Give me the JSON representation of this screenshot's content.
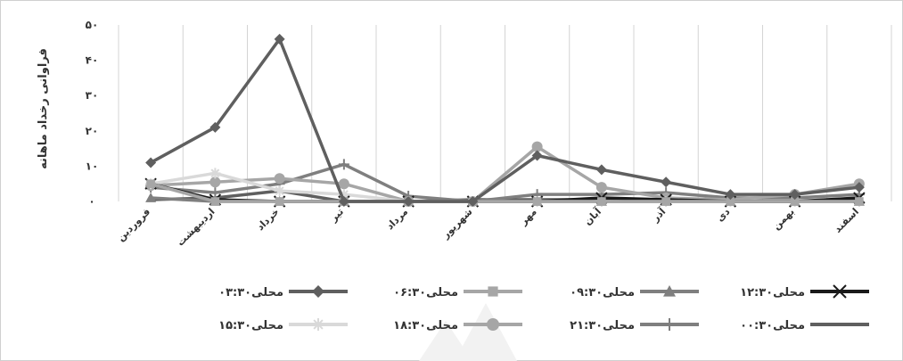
{
  "chart_data": {
    "type": "line",
    "ylabel": "فراوانی رخداد ماهانه",
    "ylim": [
      0,
      50
    ],
    "yticks": [
      0,
      10,
      20,
      30,
      40,
      50
    ],
    "ytick_labels": [
      "۰",
      "۱۰",
      "۲۰",
      "۳۰",
      "۴۰",
      "۵۰"
    ],
    "grid": "vertical",
    "legend_position": "bottom",
    "categories": [
      "فروردین",
      "اردیبهشت",
      "خرداد",
      "تیر",
      "مرداد",
      "شهریور",
      "مهر",
      "آبان",
      "آذر",
      "دی",
      "بهمن",
      "اسفند"
    ],
    "series": [
      {
        "name": "۰۳:۳۰محلی",
        "color": "#5f5f5f",
        "marker": "diamond",
        "values": [
          11,
          21,
          46,
          0,
          0,
          0,
          13,
          9,
          5.5,
          2,
          2,
          4
        ]
      },
      {
        "name": "۰۶:۳۰محلی",
        "color": "#a6a6a6",
        "marker": "square",
        "values": [
          5,
          0,
          0,
          0,
          0,
          0,
          0,
          0,
          0,
          0,
          0,
          0
        ]
      },
      {
        "name": "۰۹:۳۰محلی",
        "color": "#7f7f7f",
        "marker": "triangle",
        "values": [
          1,
          0,
          0,
          0,
          0,
          0,
          0,
          0,
          0,
          0,
          0,
          0
        ]
      },
      {
        "name": "۱۲:۳۰محلی",
        "color": "#1a1a1a",
        "marker": "x",
        "values": [
          5,
          0.5,
          0,
          0,
          0,
          0,
          0,
          1,
          0.5,
          0,
          0,
          1
        ]
      },
      {
        "name": "۱۵:۳۰محلی",
        "color": "#d9d9d9",
        "marker": "star",
        "values": [
          5,
          8,
          3,
          2,
          0,
          0,
          0,
          0,
          0,
          0,
          0,
          0
        ]
      },
      {
        "name": "۱۸:۳۰محلی",
        "color": "#a6a6a6",
        "marker": "circle",
        "values": [
          4.5,
          5.5,
          6.5,
          5,
          0,
          0,
          15.5,
          4,
          1,
          0.5,
          2,
          5
        ]
      },
      {
        "name": "۲۱:۳۰محلی",
        "color": "#7f7f7f",
        "marker": "plus",
        "values": [
          4,
          2.5,
          5,
          10.5,
          1.5,
          0,
          2,
          2,
          2.5,
          1,
          1,
          2
        ]
      },
      {
        "name": "۰۰:۳۰محلی",
        "color": "#5f5f5f",
        "marker": "none",
        "values": [
          0.5,
          1,
          3,
          0,
          0,
          0.5,
          0.5,
          0.5,
          0.5,
          0,
          0,
          0.5
        ]
      }
    ]
  }
}
